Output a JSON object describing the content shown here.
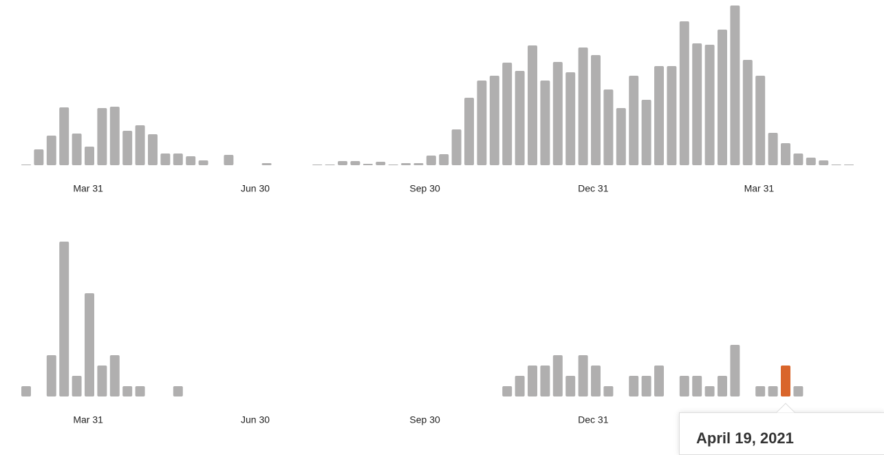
{
  "chart_data": [
    {
      "type": "bar",
      "color": "#b0afaf",
      "values": [
        1,
        23,
        43,
        84,
        46,
        27,
        83,
        85,
        50,
        58,
        45,
        17,
        17,
        13,
        7,
        0,
        15,
        0,
        0,
        3,
        0,
        0,
        0,
        1,
        1,
        6,
        6,
        2,
        5,
        1,
        3,
        3,
        14,
        16,
        52,
        98,
        123,
        130,
        149,
        137,
        174,
        123,
        150,
        135,
        171,
        160,
        110,
        83,
        130,
        95,
        144,
        144,
        209,
        177,
        175,
        197,
        232,
        153,
        130,
        47,
        32,
        17,
        11,
        7,
        1,
        1
      ],
      "xlim": [
        -0.5,
        65.5
      ],
      "xticks": [
        {
          "value": 4.9,
          "label": "Mar 31"
        },
        {
          "value": 18.1,
          "label": "Jun 30"
        },
        {
          "value": 31.5,
          "label": "Sep 30"
        },
        {
          "value": 44.8,
          "label": "Dec 31"
        },
        {
          "value": 57.9,
          "label": "Mar 31"
        }
      ],
      "ylim": [
        0,
        240
      ]
    },
    {
      "type": "bar",
      "color": "#b0afaf",
      "highlight_index": 60,
      "highlight_color": "#d9652b",
      "values": [
        1,
        0,
        4,
        15,
        2,
        10,
        3,
        4,
        1,
        1,
        0,
        0,
        1,
        0,
        0,
        0,
        0,
        0,
        0,
        0,
        0,
        0,
        0,
        0,
        0,
        0,
        0,
        0,
        0,
        0,
        0,
        0,
        0,
        0,
        0,
        0,
        0,
        0,
        1,
        2,
        3,
        3,
        4,
        2,
        4,
        3,
        1,
        0,
        2,
        2,
        3,
        0,
        2,
        2,
        1,
        2,
        5,
        0,
        1,
        1,
        3,
        1,
        0,
        0,
        0,
        0
      ],
      "xlim": [
        -0.5,
        65.5
      ],
      "xticks": [
        {
          "value": 4.9,
          "label": "Mar 31"
        },
        {
          "value": 18.1,
          "label": "Jun 30"
        },
        {
          "value": 31.5,
          "label": "Sep 30"
        },
        {
          "value": 44.8,
          "label": "Dec 31"
        }
      ],
      "ylim": [
        0,
        16
      ],
      "tooltip": {
        "title": "April 19, 2021"
      }
    }
  ]
}
